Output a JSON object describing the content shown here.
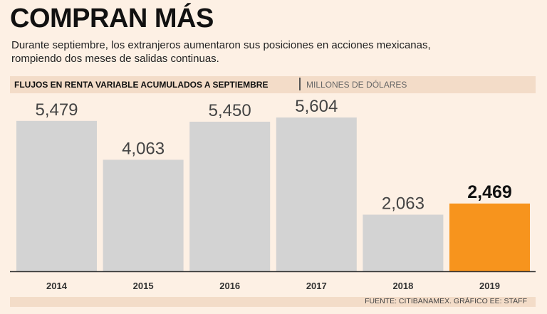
{
  "header": {
    "title": "COMPRAN MÁS",
    "subtitle": "Durante septiembre, los extranjeros aumentaron sus posiciones en acciones mexicanas, rompiendo dos meses de salidas continuas."
  },
  "band": {
    "main": "FLUJOS EN RENTA VARIABLE ACUMULADOS A SEPTIEMBRE",
    "unit": "MILLONES DE DÓLARES"
  },
  "footer": {
    "source": "FUENTE: CITIBANAMEX. GRÁFICO EE: STAFF"
  },
  "chart_data": {
    "type": "bar",
    "title": "FLUJOS EN RENTA VARIABLE ACUMULADOS A SEPTIEMBRE",
    "ylabel": "MILLONES DE DÓLARES",
    "xlabel": "",
    "categories": [
      "2014",
      "2015",
      "2016",
      "2017",
      "2018",
      "2019"
    ],
    "values": [
      5479,
      4063,
      5450,
      5604,
      2063,
      2469
    ],
    "value_labels": [
      "5,479",
      "4,063",
      "5,450",
      "5,604",
      "2,063",
      "2,469"
    ],
    "highlight_index": 5,
    "colors": {
      "bar": "#d3d3d3",
      "highlight": "#f7941d",
      "axis": "#333333",
      "label": "#444444",
      "highlight_label": "#111111"
    },
    "ylim": [
      0,
      6000
    ],
    "grid": false,
    "legend": "none"
  }
}
